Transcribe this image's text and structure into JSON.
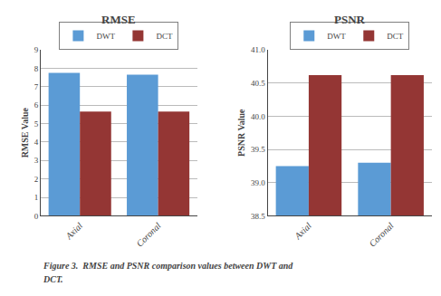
{
  "chart_data": [
    {
      "type": "bar",
      "title": "RMSE",
      "ylabel": "RMSE Value",
      "categories": [
        "Axial",
        "Coronal"
      ],
      "series": [
        {
          "name": "DWT",
          "color": "#5B9BD5",
          "values": [
            7.75,
            7.65
          ]
        },
        {
          "name": "DCT",
          "color": "#943634",
          "values": [
            5.65,
            5.65
          ]
        }
      ],
      "ylim": [
        0,
        9
      ],
      "yticks": [
        0,
        1,
        2,
        3,
        4,
        5,
        6,
        7,
        8,
        9
      ],
      "grid": true,
      "legend": "top"
    },
    {
      "type": "bar",
      "title": "PSNR",
      "ylabel": "PSNR Value",
      "categories": [
        "Axial",
        "Coronal"
      ],
      "series": [
        {
          "name": "DWT",
          "color": "#5B9BD5",
          "values": [
            39.25,
            39.3
          ]
        },
        {
          "name": "DCT",
          "color": "#943634",
          "values": [
            40.62,
            40.62
          ]
        }
      ],
      "ylim": [
        38.5,
        41
      ],
      "yticks": [
        38.5,
        {
          "value": 39,
          "label": "39.0"
        },
        39.5,
        {
          "value": 40,
          "label": "40.0"
        },
        40.5,
        {
          "value": 41,
          "label": "41.0"
        }
      ],
      "grid": true,
      "legend": "top"
    }
  ],
  "annotations": [
    "Figure 3.  RMSE and PSNR comparison values between DWT and",
    "DCT."
  ]
}
